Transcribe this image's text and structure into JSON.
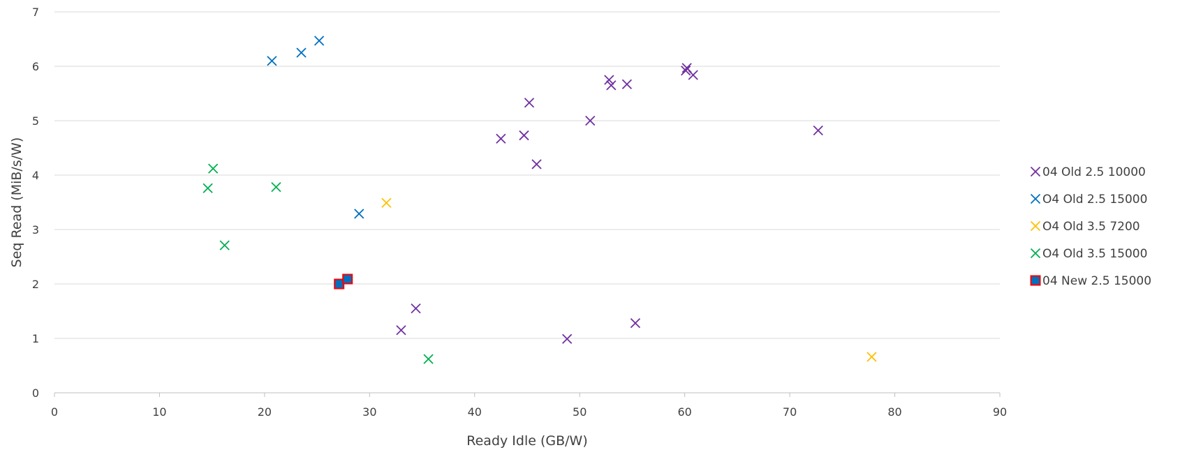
{
  "chart_data": {
    "type": "scatter",
    "title": "",
    "xlabel": "Ready Idle  (GB/W)",
    "ylabel": "Seq Read (MiB/s/W)",
    "xlim": [
      0,
      90
    ],
    "ylim": [
      0,
      7
    ],
    "xticks": [
      "0",
      "10",
      "20",
      "30",
      "40",
      "50",
      "60",
      "70",
      "80",
      "90"
    ],
    "yticks": [
      "0",
      "1",
      "2",
      "3",
      "4",
      "5",
      "6",
      "7"
    ],
    "grid": "horizontal",
    "legend_position": "right",
    "series": [
      {
        "name": "04 Old 2.5 10000",
        "marker": "x",
        "color": "#7030a0",
        "points": [
          {
            "x": 33.0,
            "y": 1.15
          },
          {
            "x": 34.4,
            "y": 1.55
          },
          {
            "x": 42.5,
            "y": 4.67
          },
          {
            "x": 44.7,
            "y": 4.73
          },
          {
            "x": 45.2,
            "y": 5.33
          },
          {
            "x": 45.9,
            "y": 4.2
          },
          {
            "x": 48.8,
            "y": 0.99
          },
          {
            "x": 51.0,
            "y": 5.0
          },
          {
            "x": 52.8,
            "y": 5.75
          },
          {
            "x": 53.0,
            "y": 5.65
          },
          {
            "x": 54.5,
            "y": 5.67
          },
          {
            "x": 55.3,
            "y": 1.28
          },
          {
            "x": 60.1,
            "y": 5.92
          },
          {
            "x": 60.2,
            "y": 5.97
          },
          {
            "x": 60.8,
            "y": 5.84
          },
          {
            "x": 72.7,
            "y": 4.82
          }
        ]
      },
      {
        "name": "O4 Old 2.5 15000",
        "marker": "x",
        "color": "#0070c0",
        "points": [
          {
            "x": 20.7,
            "y": 6.1
          },
          {
            "x": 23.5,
            "y": 6.25
          },
          {
            "x": 25.2,
            "y": 6.47
          },
          {
            "x": 29.0,
            "y": 3.29
          }
        ]
      },
      {
        "name": "O4 Old 3.5 7200",
        "marker": "x",
        "color": "#ffc000",
        "points": [
          {
            "x": 31.6,
            "y": 3.49
          },
          {
            "x": 77.8,
            "y": 0.66
          }
        ]
      },
      {
        "name": "O4 Old 3.5 15000",
        "marker": "x",
        "color": "#00b050",
        "points": [
          {
            "x": 14.6,
            "y": 3.76
          },
          {
            "x": 15.1,
            "y": 4.12
          },
          {
            "x": 16.2,
            "y": 2.71
          },
          {
            "x": 21.1,
            "y": 3.78
          },
          {
            "x": 35.6,
            "y": 0.62
          }
        ]
      },
      {
        "name": "04 New 2.5 15000",
        "marker": "square",
        "color": "#0070c0",
        "stroke": "#ff0000",
        "points": [
          {
            "x": 27.1,
            "y": 2.0
          },
          {
            "x": 27.9,
            "y": 2.09
          }
        ]
      }
    ]
  }
}
